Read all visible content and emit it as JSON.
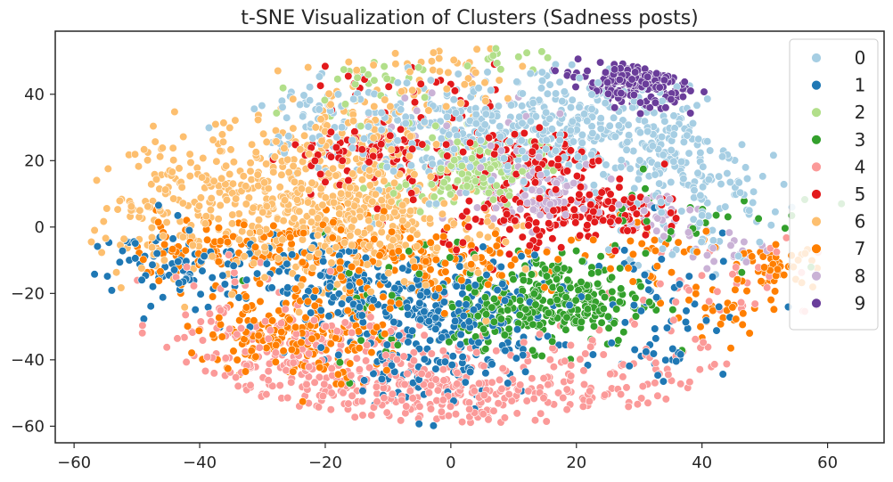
{
  "chart_data": {
    "type": "scatter",
    "title": "t-SNE Visualization of Clusters (Sadness posts)",
    "xlabel": "",
    "ylabel": "",
    "xlim": [
      -63,
      69
    ],
    "ylim": [
      -65,
      59
    ],
    "xticks": [
      -60,
      -40,
      -20,
      0,
      20,
      40,
      60
    ],
    "yticks": [
      -60,
      -40,
      -20,
      0,
      20,
      40
    ],
    "xtick_labels": [
      "−60",
      "−40",
      "−20",
      "0",
      "20",
      "40",
      "60"
    ],
    "ytick_labels": [
      "−60",
      "−40",
      "−20",
      "0",
      "20",
      "40"
    ],
    "grid": false,
    "legend_placement": "top-right",
    "series": [
      {
        "name": "0",
        "color": "#a6cee3",
        "centers": [
          [
            2,
            28,
            14,
            8,
            320
          ],
          [
            22,
            32,
            12,
            8,
            200
          ],
          [
            35,
            18,
            7,
            8,
            120
          ],
          [
            -20,
            35,
            6,
            6,
            40
          ],
          [
            40,
            5,
            6,
            10,
            60
          ]
        ]
      },
      {
        "name": "1",
        "color": "#1f78b4",
        "centers": [
          [
            0,
            -27,
            8,
            9,
            230
          ],
          [
            -17,
            -18,
            7,
            7,
            140
          ],
          [
            -40,
            -13,
            7,
            5,
            80
          ],
          [
            -5,
            -45,
            6,
            6,
            60
          ],
          [
            35,
            -38,
            5,
            6,
            30
          ],
          [
            -50,
            -8,
            4,
            5,
            20
          ],
          [
            30,
            -20,
            8,
            10,
            40
          ]
        ]
      },
      {
        "name": "2",
        "color": "#b2df8a",
        "centers": [
          [
            5,
            18,
            5,
            5,
            130
          ],
          [
            -15,
            42,
            5,
            5,
            30
          ],
          [
            -5,
            12,
            5,
            5,
            30
          ],
          [
            8,
            50,
            4,
            3,
            15
          ]
        ]
      },
      {
        "name": "3",
        "color": "#33a02c",
        "centers": [
          [
            17,
            -22,
            7,
            7,
            260
          ],
          [
            5,
            -28,
            4,
            4,
            40
          ],
          [
            40,
            5,
            10,
            10,
            30
          ],
          [
            -10,
            -20,
            10,
            10,
            30
          ]
        ]
      },
      {
        "name": "4",
        "color": "#fb9a99",
        "centers": [
          [
            -20,
            -42,
            12,
            8,
            220
          ],
          [
            -2,
            -52,
            12,
            5,
            150
          ],
          [
            20,
            -45,
            14,
            7,
            150
          ],
          [
            -30,
            -30,
            10,
            10,
            80
          ],
          [
            45,
            -18,
            8,
            8,
            40
          ]
        ]
      },
      {
        "name": "5",
        "color": "#e31a1c",
        "centers": [
          [
            23,
            5,
            5,
            4,
            110
          ],
          [
            13,
            20,
            6,
            4,
            70
          ],
          [
            -14,
            23,
            5,
            3,
            60
          ],
          [
            11,
            0,
            6,
            5,
            60
          ],
          [
            0,
            15,
            15,
            10,
            80
          ],
          [
            -5,
            40,
            10,
            8,
            30
          ]
        ]
      },
      {
        "name": "6",
        "color": "#fdbf6f",
        "centers": [
          [
            -20,
            8,
            10,
            12,
            480
          ],
          [
            -40,
            10,
            8,
            10,
            150
          ],
          [
            -5,
            0,
            8,
            10,
            100
          ],
          [
            -10,
            35,
            8,
            10,
            70
          ],
          [
            -50,
            -2,
            4,
            6,
            25
          ],
          [
            2,
            48,
            5,
            4,
            25
          ]
        ]
      },
      {
        "name": "7",
        "color": "#ff7f00",
        "centers": [
          [
            -25,
            -32,
            7,
            7,
            200
          ],
          [
            -5,
            -12,
            10,
            6,
            140
          ],
          [
            -40,
            -8,
            7,
            5,
            80
          ],
          [
            52,
            -12,
            3,
            3,
            50
          ],
          [
            43,
            -26,
            4,
            4,
            30
          ],
          [
            -20,
            -5,
            10,
            5,
            60
          ],
          [
            30,
            -5,
            8,
            6,
            40
          ]
        ]
      },
      {
        "name": "8",
        "color": "#cab2d6",
        "centers": [
          [
            15,
            10,
            5,
            5,
            100
          ],
          [
            32,
            3,
            4,
            4,
            40
          ],
          [
            45,
            -8,
            4,
            3,
            20
          ],
          [
            5,
            25,
            8,
            8,
            30
          ]
        ]
      },
      {
        "name": "9",
        "color": "#6a3d9a",
        "centers": [
          [
            30,
            44,
            4.5,
            4,
            260
          ]
        ]
      }
    ]
  }
}
